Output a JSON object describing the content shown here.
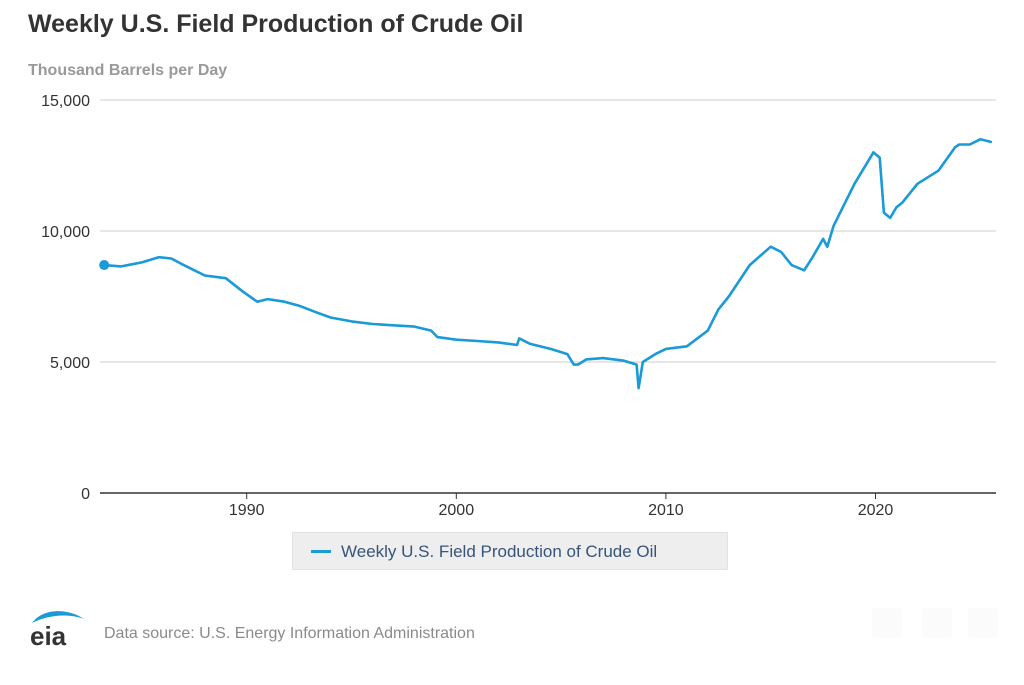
{
  "title": "Weekly U.S. Field Production of Crude Oil",
  "unit_label": "Thousand Barrels per Day",
  "source_text": "Data source: U.S. Energy Information Administration",
  "logo_text": "eia",
  "colors": {
    "series": "#1a9ad6",
    "grid": "#cccccc",
    "axis": "#333333"
  },
  "chart_data": {
    "type": "line",
    "title": "Weekly U.S. Field Production of Crude Oil",
    "ylabel": "Thousand Barrels per Day",
    "xlabel": "",
    "xlim": [
      1983.0,
      2025.75
    ],
    "ylim": [
      0,
      15000
    ],
    "x_ticks": [
      1990,
      2000,
      2010,
      2020
    ],
    "x_tick_labels": [
      "1990",
      "2000",
      "2010",
      "2020"
    ],
    "y_ticks": [
      0,
      5000,
      10000,
      15000
    ],
    "y_tick_labels": [
      "0",
      "5,000",
      "10,000",
      "15,000"
    ],
    "grid": true,
    "legend_position": "bottom-center",
    "start_marker": true,
    "series": [
      {
        "name": "Weekly U.S. Field Production of Crude Oil",
        "x": [
          1983.2,
          1984.0,
          1985.0,
          1985.8,
          1986.4,
          1987.0,
          1988.0,
          1989.0,
          1989.8,
          1990.5,
          1991.0,
          1991.8,
          1992.5,
          1993.3,
          1994.0,
          1995.0,
          1996.0,
          1997.0,
          1998.0,
          1998.8,
          1999.1,
          2000.0,
          2001.0,
          2002.0,
          2002.9,
          2003.0,
          2003.5,
          2004.5,
          2005.3,
          2005.6,
          2005.8,
          2006.2,
          2007.0,
          2008.0,
          2008.6,
          2008.7,
          2008.9,
          2009.5,
          2010.0,
          2011.0,
          2012.0,
          2012.5,
          2013.0,
          2014.0,
          2015.0,
          2015.5,
          2016.0,
          2016.6,
          2017.0,
          2017.5,
          2017.7,
          2018.0,
          2019.0,
          2019.9,
          2020.2,
          2020.4,
          2020.7,
          2021.0,
          2021.3,
          2022.0,
          2023.0,
          2023.8,
          2024.0,
          2024.5,
          2025.0,
          2025.5
        ],
        "values": [
          8700,
          8650,
          8800,
          9000,
          8950,
          8700,
          8300,
          8200,
          7700,
          7300,
          7400,
          7300,
          7150,
          6900,
          6700,
          6550,
          6450,
          6400,
          6350,
          6200,
          5950,
          5850,
          5800,
          5750,
          5650,
          5900,
          5700,
          5500,
          5300,
          4900,
          4900,
          5100,
          5150,
          5050,
          4900,
          4000,
          5000,
          5300,
          5500,
          5600,
          6200,
          7000,
          7500,
          8700,
          9400,
          9200,
          8700,
          8500,
          9000,
          9700,
          9400,
          10200,
          11800,
          13000,
          12800,
          10700,
          10500,
          10900,
          11100,
          11800,
          12300,
          13200,
          13300,
          13300,
          13500,
          13400
        ]
      }
    ]
  }
}
